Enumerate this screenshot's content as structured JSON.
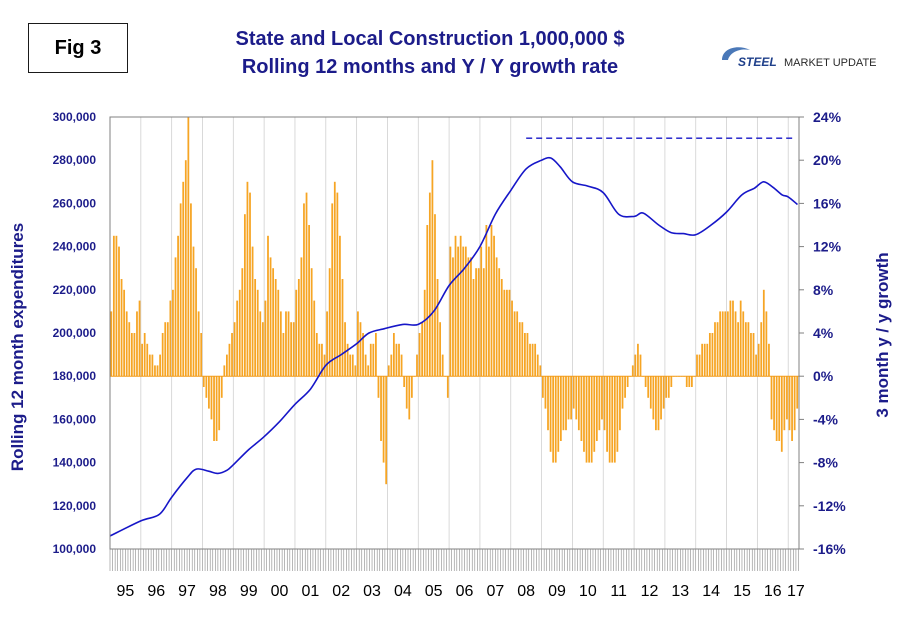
{
  "figure_label": "Fig 3",
  "title_line1": "State and Local Construction 1,000,000 $",
  "title_line2": "Rolling 12 months and Y / Y growth rate",
  "logo": {
    "word1": "STEEL",
    "word2": "MARKET UPDATE"
  },
  "colors": {
    "title": "#1c1c8a",
    "line": "#1616c8",
    "bars": "#f6a524",
    "grid": "#d0d0d0",
    "axis_text": "#1c1c8a"
  },
  "chart_data": {
    "type": "bar+line",
    "ylabel_left": "Rolling 12 month expenditures",
    "ylabel_right": "3 month y / y growth",
    "left_ticks": [
      "300,000",
      "280,000",
      "260,000",
      "240,000",
      "220,000",
      "200,000",
      "180,000",
      "160,000",
      "140,000",
      "120,000",
      "100,000"
    ],
    "right_ticks": [
      "24%",
      "20%",
      "16%",
      "12%",
      "8%",
      "4%",
      "0%",
      "-4%",
      "-8%",
      "-12%",
      "-16%"
    ],
    "ylim_left": [
      100000,
      300000
    ],
    "ylim_right": [
      -16,
      24
    ],
    "x_labels": [
      "95",
      "96",
      "97",
      "98",
      "99",
      "00",
      "01",
      "02",
      "03",
      "04",
      "05",
      "06",
      "07",
      "08",
      "09",
      "10",
      "11",
      "12",
      "13",
      "14",
      "15",
      "16",
      "17"
    ],
    "grid": "vertical",
    "reference_line": {
      "value": 280000,
      "from": "2008.5",
      "to": "2017.9",
      "style": "dashed"
    },
    "growth_pct_monthly_from_jan1995": [
      6,
      13,
      13,
      12,
      9,
      8,
      6,
      5,
      4,
      4,
      6,
      7,
      3,
      4,
      3,
      2,
      2,
      1,
      1,
      2,
      4,
      5,
      5,
      7,
      8,
      11,
      13,
      16,
      18,
      20,
      24,
      16,
      12,
      10,
      6,
      4,
      -1,
      -2,
      -3,
      -4,
      -6,
      -6,
      -5,
      -2,
      1,
      2,
      3,
      4,
      5,
      7,
      8,
      10,
      15,
      18,
      17,
      12,
      9,
      8,
      6,
      5,
      7,
      13,
      11,
      10,
      9,
      8,
      6,
      4,
      6,
      6,
      5,
      5,
      8,
      9,
      11,
      16,
      17,
      14,
      10,
      7,
      4,
      3,
      3,
      2,
      6,
      10,
      16,
      18,
      17,
      13,
      9,
      5,
      3,
      2,
      2,
      1,
      6,
      5,
      4,
      2,
      1,
      3,
      3,
      4,
      -2,
      -6,
      -8,
      -10,
      1,
      2,
      4,
      3,
      3,
      2,
      -1,
      -3,
      -4,
      -2,
      0,
      2,
      4,
      5,
      8,
      14,
      17,
      20,
      15,
      9,
      5,
      2,
      0,
      -2,
      12,
      11,
      13,
      12,
      13,
      12,
      12,
      11,
      11,
      9,
      10,
      10,
      12,
      10,
      14,
      12,
      14,
      13,
      11,
      10,
      9,
      8,
      8,
      8,
      7,
      6,
      6,
      5,
      5,
      4,
      4,
      3,
      3,
      3,
      2,
      1,
      -2,
      -3,
      -5,
      -7,
      -8,
      -8,
      -7,
      -6,
      -5,
      -5,
      -4,
      -4,
      -3,
      -4,
      -5,
      -6,
      -7,
      -8,
      -8,
      -8,
      -7,
      -6,
      -5,
      -4,
      -5,
      -7,
      -8,
      -8,
      -8,
      -7,
      -5,
      -3,
      -2,
      -1,
      0,
      1,
      2,
      3,
      2,
      0,
      -1,
      -2,
      -3,
      -4,
      -5,
      -5,
      -4,
      -3,
      -2,
      -2,
      -1,
      0,
      0,
      0,
      0,
      0,
      -1,
      -1,
      -1,
      0,
      2,
      2,
      3,
      3,
      3,
      4,
      4,
      5,
      5,
      6,
      6,
      6,
      6,
      7,
      7,
      6,
      5,
      7,
      6,
      5,
      5,
      4,
      4,
      2,
      3,
      5,
      8,
      6,
      3,
      -4,
      -5,
      -6,
      -6,
      -7,
      -5,
      -4,
      -5,
      -6,
      -5,
      -3
    ],
    "rolling12_anchors": [
      [
        1995.0,
        106000
      ],
      [
        1996.0,
        113000
      ],
      [
        1996.6,
        116000
      ],
      [
        1997.0,
        124000
      ],
      [
        1997.5,
        133000
      ],
      [
        1997.8,
        137000
      ],
      [
        1998.2,
        136000
      ],
      [
        1998.5,
        135000
      ],
      [
        1998.8,
        136500
      ],
      [
        1999.0,
        139000
      ],
      [
        1999.5,
        146000
      ],
      [
        2000.0,
        152000
      ],
      [
        2000.5,
        159000
      ],
      [
        2001.0,
        167000
      ],
      [
        2001.5,
        174000
      ],
      [
        2002.0,
        185000
      ],
      [
        2002.5,
        190000
      ],
      [
        2003.0,
        195000
      ],
      [
        2003.4,
        200000
      ],
      [
        2003.9,
        202000
      ],
      [
        2004.5,
        204000
      ],
      [
        2005.0,
        204000
      ],
      [
        2005.5,
        210000
      ],
      [
        2006.0,
        222000
      ],
      [
        2006.5,
        230000
      ],
      [
        2007.0,
        240000
      ],
      [
        2007.5,
        255000
      ],
      [
        2008.0,
        266000
      ],
      [
        2008.5,
        276000
      ],
      [
        2009.0,
        280000
      ],
      [
        2009.3,
        281000
      ],
      [
        2009.6,
        277000
      ],
      [
        2010.0,
        270000
      ],
      [
        2010.5,
        268000
      ],
      [
        2011.0,
        265000
      ],
      [
        2011.5,
        255000
      ],
      [
        2012.0,
        254000
      ],
      [
        2012.3,
        255500
      ],
      [
        2012.8,
        250000
      ],
      [
        2013.2,
        246500
      ],
      [
        2013.6,
        246000
      ],
      [
        2014.0,
        245500
      ],
      [
        2014.5,
        250000
      ],
      [
        2015.0,
        256000
      ],
      [
        2015.5,
        264000
      ],
      [
        2015.9,
        267000
      ],
      [
        2016.2,
        270000
      ],
      [
        2016.5,
        267500
      ],
      [
        2016.8,
        264000
      ],
      [
        2017.0,
        263000
      ],
      [
        2017.3,
        259500
      ]
    ]
  }
}
